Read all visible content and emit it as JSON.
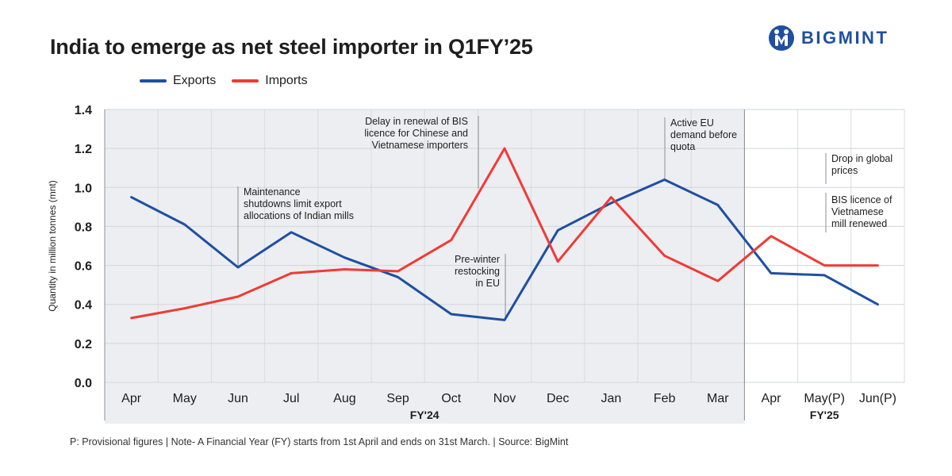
{
  "header": {
    "title": "India to emerge as net steel importer in Q1FY’25",
    "brand": "BIGMINT"
  },
  "colors": {
    "exports": "#1e4fa3",
    "imports": "#ef3b36",
    "shade": "#eceef1",
    "brand": "#1f4fa0"
  },
  "chart_data": {
    "type": "line",
    "title": "India to emerge as net steel importer in Q1FY’25",
    "ylabel": "Quantity in million tonnes (mnt)",
    "ylim": [
      0,
      1.4
    ],
    "yticks": [
      "0.0",
      "0.2",
      "0.4",
      "0.6",
      "0.8",
      "1.0",
      "1.2",
      "1.4"
    ],
    "ytick_values": [
      0,
      0.2,
      0.4,
      0.6,
      0.8,
      1.0,
      1.2,
      1.4
    ],
    "categories": [
      "Apr",
      "May",
      "Jun",
      "Jul",
      "Aug",
      "Sep",
      "Oct",
      "Nov",
      "Dec",
      "Jan",
      "Feb",
      "Mar",
      "Apr",
      "May(P)",
      "Jun(P)"
    ],
    "groups": [
      {
        "label": "FY'24",
        "start": 0,
        "end": 11
      },
      {
        "label": "FY'25",
        "start": 12,
        "end": 14
      }
    ],
    "series": [
      {
        "name": "Exports",
        "values": [
          0.95,
          0.81,
          0.59,
          0.77,
          0.64,
          0.54,
          0.35,
          0.32,
          0.78,
          0.92,
          1.04,
          0.91,
          0.56,
          0.55,
          0.4
        ]
      },
      {
        "name": "Imports",
        "values": [
          0.33,
          0.38,
          0.44,
          0.56,
          0.58,
          0.57,
          0.73,
          1.2,
          0.62,
          0.95,
          0.65,
          0.52,
          0.75,
          0.6,
          0.6
        ]
      }
    ],
    "annotations": [
      {
        "index": 2,
        "lines": [
          "Maintenance",
          "shutdowns limit export",
          "allocations of Indian mills"
        ]
      },
      {
        "index": 6.5,
        "lines": [
          "Delay in renewal of BIS",
          "licence for Chinese and",
          "Vietnamese importers"
        ]
      },
      {
        "index": 7,
        "lines": [
          "Pre-winter",
          "restocking",
          "in EU"
        ]
      },
      {
        "index": 10,
        "lines": [
          "Active EU",
          "demand before",
          "quota"
        ]
      },
      {
        "index": 13.5,
        "lines": [
          "Drop in global",
          "prices"
        ]
      },
      {
        "index": 13.5,
        "lines": [
          "BIS licence of",
          "Vietnamese",
          "mill renewed"
        ]
      }
    ],
    "legend": "top-left",
    "grid": true
  },
  "footnote": "P: Provisional figures | Note- A Financial Year (FY) starts from 1st April and ends on 31st March. | Source: BigMint"
}
